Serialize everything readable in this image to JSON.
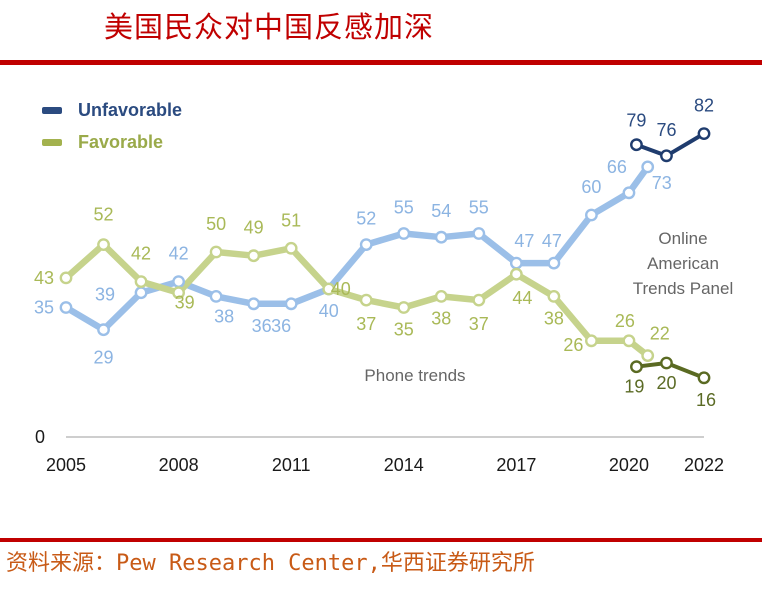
{
  "header": {
    "title": "美国民众对中国反感加深"
  },
  "footer": {
    "source": "资料来源：Pew Research Center,华西证券研究所"
  },
  "colors": {
    "title": "#c00000",
    "source": "#c85a16",
    "unfavorable_phone": "#9bbfe8",
    "unfavorable_online": "#1f3c6e",
    "favorable_phone": "#c6d38c",
    "favorable_online": "#5a6a22"
  },
  "chart_data": {
    "type": "line",
    "title": "",
    "xlabel": "",
    "ylabel": "",
    "x_ticks": [
      "2005",
      "2008",
      "2011",
      "2014",
      "2017",
      "2020",
      "2022"
    ],
    "y_tick_labels": [
      "0"
    ],
    "xlim": [
      2005,
      2022
    ],
    "ylim": [
      0,
      100
    ],
    "legend": {
      "position": "top-left",
      "entries": [
        "Unfavorable",
        "Favorable"
      ]
    },
    "series": [
      {
        "name": "Unfavorable",
        "segment": "phone",
        "x": [
          2005,
          2006,
          2007,
          2008,
          2009,
          2010,
          2011,
          2012,
          2013,
          2014,
          2015,
          2016,
          2017,
          2018,
          2019,
          2020
        ],
        "values": [
          35,
          29,
          39,
          42,
          38,
          36,
          36,
          40,
          52,
          55,
          54,
          55,
          47,
          47,
          60,
          66
        ]
      },
      {
        "name": "Unfavorable",
        "segment": "phone",
        "x": [
          2020,
          2020.5
        ],
        "values": [
          66,
          73
        ]
      },
      {
        "name": "Unfavorable",
        "segment": "online",
        "x": [
          2020.2,
          2021,
          2022
        ],
        "values": [
          79,
          76,
          82
        ]
      },
      {
        "name": "Favorable",
        "segment": "phone",
        "x": [
          2005,
          2006,
          2007,
          2008,
          2009,
          2010,
          2011,
          2012,
          2013,
          2014,
          2015,
          2016,
          2017,
          2018,
          2019,
          2020
        ],
        "values": [
          43,
          52,
          42,
          39,
          50,
          49,
          51,
          40,
          37,
          35,
          38,
          37,
          44,
          38,
          26,
          26
        ]
      },
      {
        "name": "Favorable",
        "segment": "phone",
        "x": [
          2020,
          2020.5
        ],
        "values": [
          26,
          22
        ]
      },
      {
        "name": "Favorable",
        "segment": "online",
        "x": [
          2020.2,
          2021,
          2022
        ],
        "values": [
          19,
          20,
          16
        ]
      }
    ],
    "annotations": [
      {
        "text": "Online American Trends Panel",
        "lines": [
          "Online",
          "American",
          "Trends Panel"
        ]
      },
      {
        "text": "Phone trends"
      }
    ],
    "grid": false
  }
}
